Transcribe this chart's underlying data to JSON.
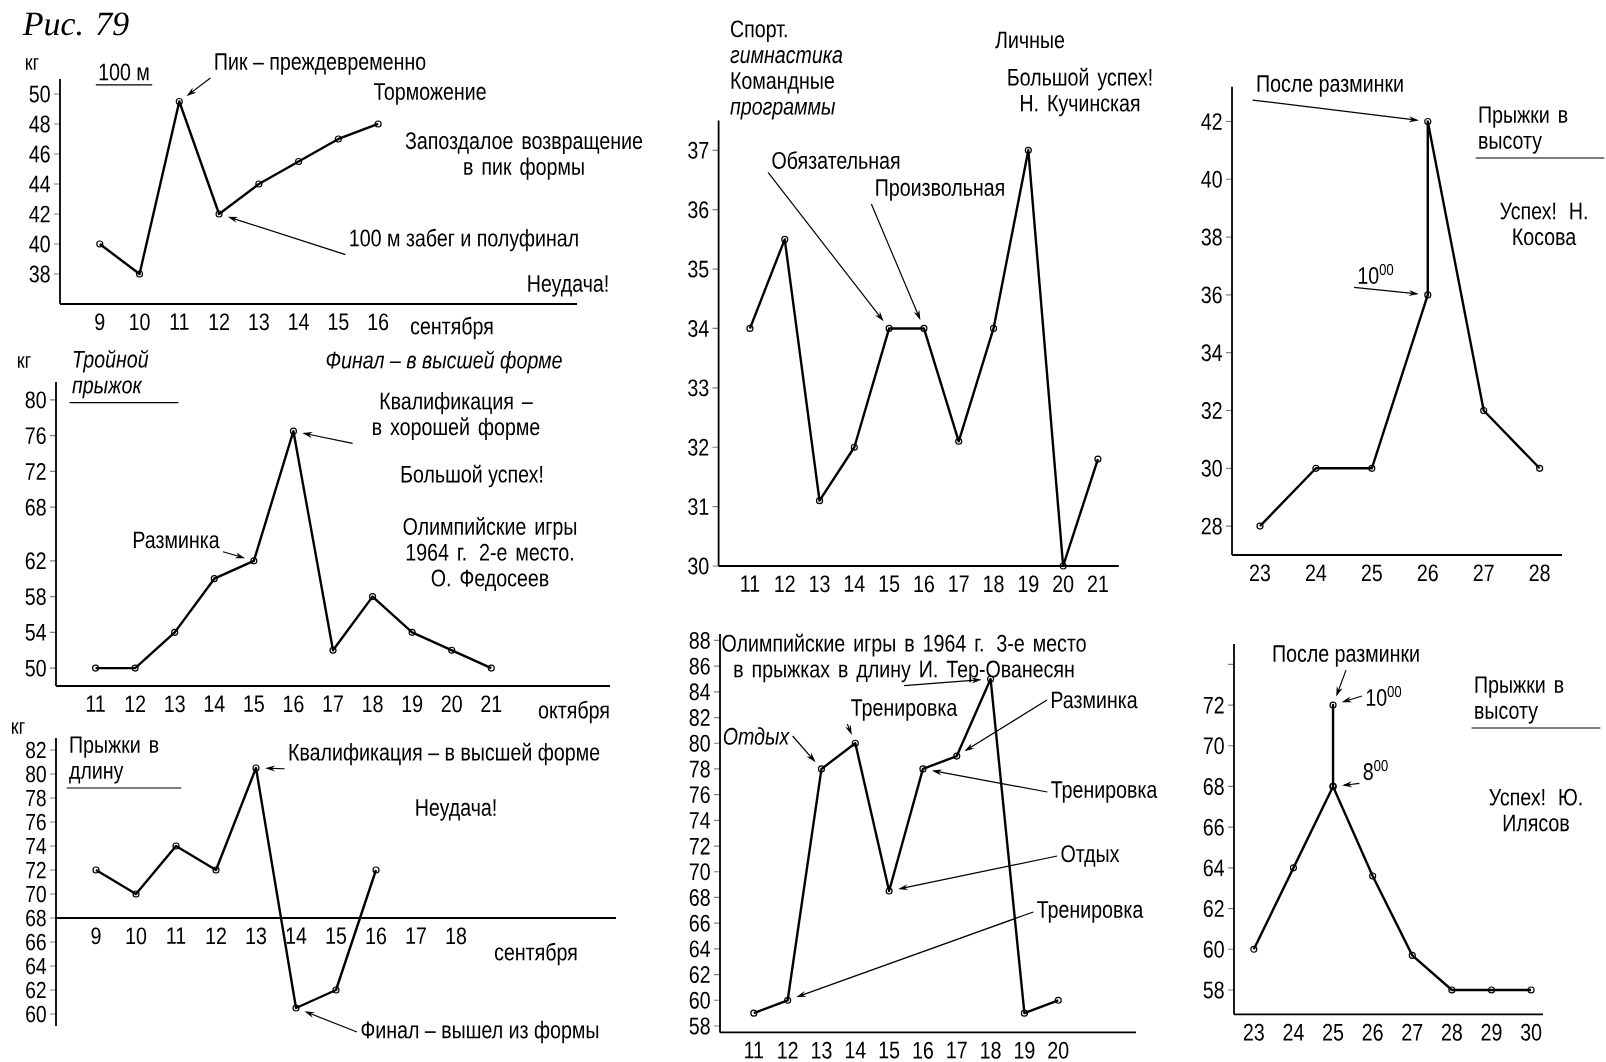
{
  "chart_data": [
    {
      "type": "line",
      "title": "100 м",
      "ylabel": "кг",
      "xlabel": "сентября",
      "x": [
        9,
        10,
        11,
        12,
        13,
        14,
        15,
        16
      ],
      "values": [
        40,
        38,
        49.5,
        42,
        44,
        45.5,
        47,
        48
      ],
      "color": "#000000",
      "marker": "circle",
      "xlim": [
        8,
        21
      ],
      "ylim": [
        36,
        51
      ],
      "xticks": [
        9,
        10,
        11,
        12,
        13,
        14,
        15,
        16
      ],
      "yticks": [
        38,
        40,
        42,
        44,
        46,
        48,
        50
      ],
      "annotations": [
        "Рис. 79",
        {
          "text": "Пик – преждевременно",
          "x": 11,
          "y": 49.5
        },
        "Торможение",
        "Запоздалое возвращение в пик формы",
        {
          "text": "100 м забег и полуфинал",
          "x": 12,
          "y": 42
        },
        "Неудача!"
      ]
    },
    {
      "type": "line",
      "title": "Тройной прыжок",
      "ylabel": "кг",
      "xlabel": "октября",
      "x": [
        11,
        12,
        13,
        14,
        15,
        16,
        17,
        18,
        19,
        20,
        21
      ],
      "values": [
        50,
        50,
        54,
        60,
        62,
        76.5,
        52,
        58,
        54,
        52,
        50
      ],
      "color": "#000000",
      "marker": "circle",
      "xlim": [
        10,
        24
      ],
      "ylim": [
        48,
        82
      ],
      "xticks": [
        11,
        12,
        13,
        14,
        15,
        16,
        17,
        18,
        19,
        20,
        21
      ],
      "yticks": [
        50,
        54,
        58,
        62,
        68,
        72,
        76,
        80
      ],
      "annotations": [
        "Финал – в высшей форме",
        {
          "text": "Квалификация – в хорошей форме",
          "x": 16,
          "y": 76.5
        },
        "Большой успех!",
        {
          "text": "Разминка",
          "x": 15,
          "y": 62
        },
        "Олимпийские игры 1964 г. 2-е место. О. Федосеев"
      ]
    },
    {
      "type": "line",
      "title": "Прыжки в длину",
      "ylabel": "кг",
      "xlabel": "сентября",
      "x": [
        9,
        10,
        11,
        12,
        13,
        14,
        15,
        16
      ],
      "values": [
        72,
        70,
        74,
        72,
        80.5,
        60.5,
        62,
        72
      ],
      "color": "#000000",
      "marker": "circle",
      "xlim": [
        8,
        22
      ],
      "ylim": [
        59,
        83
      ],
      "xticks": [
        9,
        10,
        11,
        12,
        13,
        14,
        15,
        16,
        17,
        18
      ],
      "yticks": [
        60,
        62,
        64,
        66,
        68,
        70,
        72,
        74,
        76,
        78,
        80,
        82
      ],
      "annotations": [
        {
          "text": "Квалификация – в высшей форме",
          "x": 13,
          "y": 80.5
        },
        "Неудача!",
        {
          "text": "Финал – вышел из формы",
          "x": 14,
          "y": 60.5
        }
      ]
    },
    {
      "type": "line",
      "title": "Спорт. *гимнастика* Командные *программы*",
      "x": [
        11,
        12,
        13,
        14,
        15,
        16,
        17,
        18,
        19,
        20,
        21
      ],
      "values": [
        34,
        35.5,
        31.1,
        32,
        34,
        34,
        32.1,
        34,
        37,
        30,
        31.8
      ],
      "color": "#000000",
      "marker": "circle",
      "xlim": [
        10.1,
        21.6
      ],
      "ylim": [
        30,
        37.5
      ],
      "xticks": [
        11,
        12,
        13,
        14,
        15,
        16,
        17,
        18,
        19,
        20,
        21
      ],
      "yticks": [
        30,
        31,
        32,
        33,
        34,
        35,
        36,
        37
      ],
      "annotations": [
        {
          "text": "Обязательная",
          "x": 15,
          "y": 34
        },
        {
          "text": "Произвольная",
          "x": 16,
          "y": 34
        },
        "Личные",
        "Большой успех! Н. Кучинская"
      ]
    },
    {
      "type": "line",
      "x": [
        11,
        12,
        13,
        14,
        15,
        16,
        17,
        18,
        19,
        20
      ],
      "values": [
        59,
        60,
        78,
        80,
        68.5,
        78,
        79,
        85,
        59,
        60
      ],
      "color": "#000000",
      "marker": "circle",
      "xlim": [
        10,
        22.3
      ],
      "ylim": [
        57.5,
        88.5
      ],
      "xticks": [
        11,
        12,
        13,
        14,
        15,
        16,
        17,
        18,
        19,
        20
      ],
      "yticks": [
        58,
        60,
        62,
        64,
        66,
        68,
        70,
        72,
        74,
        76,
        78,
        80,
        82,
        84,
        86,
        88
      ],
      "annotations": [
        {
          "text": "Олимпийские игры в 1964 г. 3-е место в прыжках в длину И. Тер-Ованесян",
          "x": 18,
          "y": 85
        },
        {
          "text": "Отдых",
          "x": 13,
          "y": 78
        },
        {
          "text": "Тренировка",
          "x": 14,
          "y": 80
        },
        {
          "text": "Разминка",
          "x": 17,
          "y": 79
        },
        {
          "text": "Тренировка",
          "x": 16,
          "y": 78
        },
        {
          "text": "Отдых",
          "x": 15,
          "y": 68.5
        },
        {
          "text": "Тренировка",
          "x": 12,
          "y": 60
        }
      ]
    },
    {
      "type": "line",
      "title": "Прыжки в высоту",
      "x": [
        23,
        24,
        25,
        26,
        26,
        27,
        28
      ],
      "values": [
        28,
        30,
        30,
        36,
        42,
        32,
        30
      ],
      "color": "#000000",
      "marker": "circle",
      "xlim": [
        22.5,
        28.4
      ],
      "ylim": [
        27,
        43.2
      ],
      "xticks": [
        23,
        24,
        25,
        26,
        27,
        28
      ],
      "yticks": [
        28,
        30,
        32,
        34,
        36,
        38,
        40,
        42
      ],
      "annotations": [
        {
          "text": "После разминки",
          "x": 26,
          "y": 42
        },
        {
          "text": "10$^{00}$",
          "x": 26,
          "y": 36
        },
        "Успех! Н. Косова"
      ]
    },
    {
      "type": "line",
      "title": "Прыжки в высоту",
      "x": [
        23,
        24,
        25,
        25,
        25,
        26,
        27,
        28,
        29,
        30
      ],
      "values": [
        60,
        64,
        68,
        72,
        68,
        63.6,
        59.7,
        58,
        58,
        58
      ],
      "color": "#000000",
      "marker": "circle",
      "xlim": [
        22.5,
        30.3
      ],
      "ylim": [
        56.8,
        75
      ],
      "xticks": [
        23,
        24,
        25,
        26,
        27,
        28,
        29,
        30
      ],
      "yticks": [
        58,
        60,
        62,
        64,
        66,
        68,
        70,
        72,
        {
          "value": 74,
          "label": null
        }
      ],
      "annotations": [
        {
          "text": "После разминки",
          "x": 25,
          "y": 72
        },
        {
          "text": "10$^{00}$",
          "x": 25,
          "y": 72
        },
        {
          "text": "8$^{00}$",
          "x": 25,
          "y": 68
        },
        "Успех! Ю. Илясов"
      ]
    }
  ]
}
